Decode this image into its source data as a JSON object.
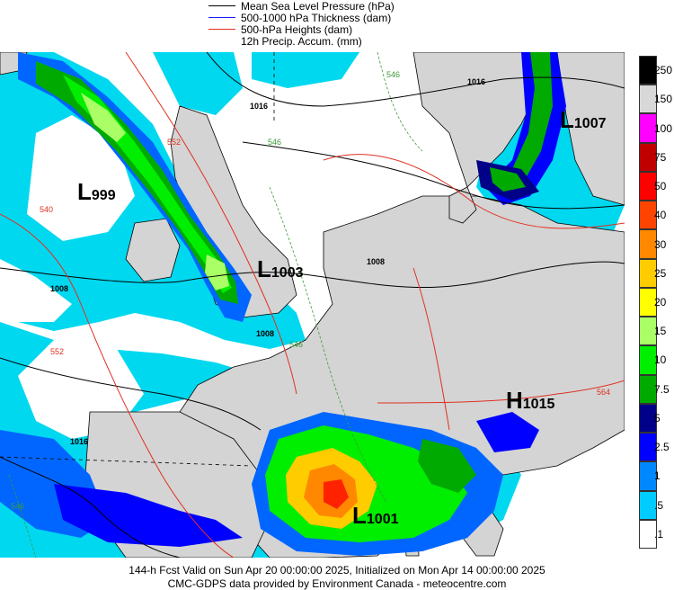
{
  "legend": [
    {
      "label": "Mean Sea Level Pressure (hPa)",
      "color": "#000000"
    },
    {
      "label": "500-1000 hPa Thickness (dam)",
      "color": "#1a1aff"
    },
    {
      "label": "500-hPa Heights (dam)",
      "color": "#e03020"
    },
    {
      "label": "12h Precip. Accum. (mm)",
      "color": ""
    }
  ],
  "scale": {
    "labels": [
      "250",
      "150",
      "100",
      "75",
      "50",
      "40",
      "30",
      "25",
      "20",
      "15",
      "10",
      "7.5",
      "5",
      "2.5",
      "1",
      ".5",
      ".1"
    ],
    "colors": [
      "#000000",
      "#d8d8d8",
      "#ff00ff",
      "#c00000",
      "#ff0000",
      "#ff4400",
      "#ff8800",
      "#ffcc00",
      "#ffff00",
      "#aaff66",
      "#00ee00",
      "#00aa00",
      "#000088",
      "#0000ff",
      "#0088ff",
      "#00ccff",
      "#ffffff"
    ]
  },
  "pressure_centers": [
    {
      "letter": "L",
      "value": "999"
    },
    {
      "letter": "L",
      "value": "1003"
    },
    {
      "letter": "L",
      "value": "1007"
    },
    {
      "letter": "H",
      "value": "1015"
    },
    {
      "letter": "L",
      "value": "1001"
    }
  ],
  "isobar_labels": [
    "1016",
    "1016",
    "1008",
    "1008",
    "1008",
    "1016",
    "1008",
    "1008"
  ],
  "thickness_labels": [
    "546",
    "546",
    "546",
    "546"
  ],
  "height_labels": [
    "540",
    "552",
    "552",
    "564",
    "540"
  ],
  "footer": {
    "line1": "144-h Fcst Valid on Sun Apr 20 00:00:00 2025, Initialized on Mon Apr 14 00:00:00 2025",
    "line2": "CMC-GDPS data provided by Environment Canada - meteocentre.com"
  }
}
